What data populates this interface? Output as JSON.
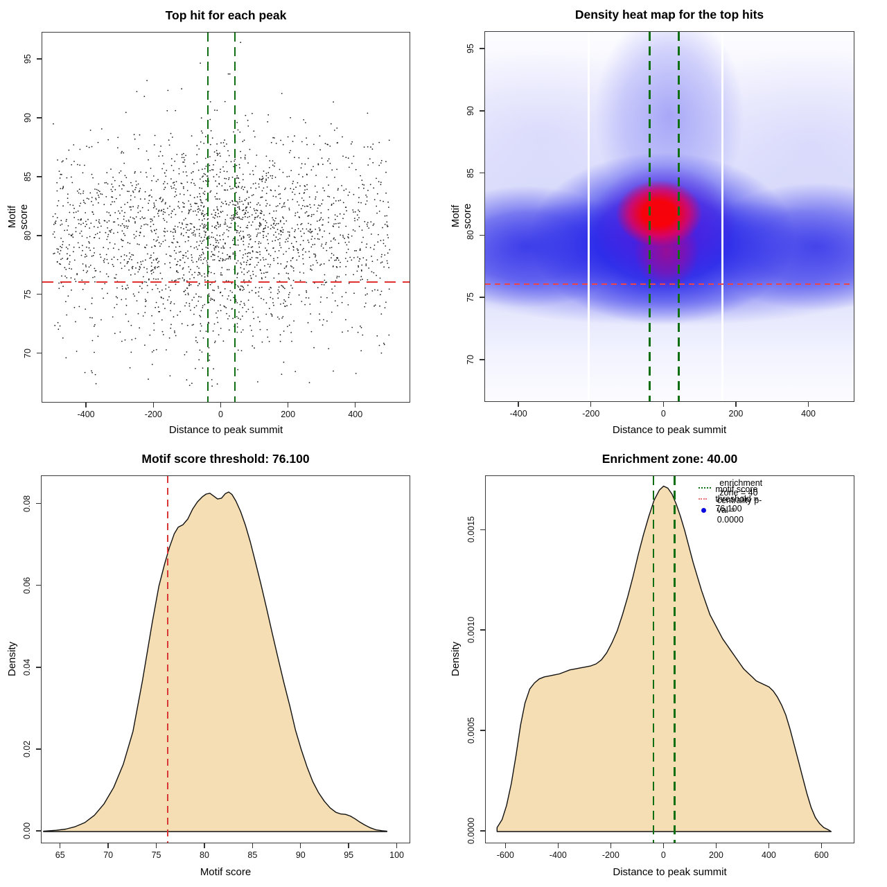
{
  "colors": {
    "threshold_red": "#e03131",
    "zone_green": "#0e6f12",
    "density_fill": "#f5deb3",
    "density_stroke": "#101010",
    "point_color": "#1b1b1b",
    "legend_blue": "#0b0be0",
    "heat_low": "#ffffff",
    "heat_mid": "#1e1ee8",
    "heat_hot": "#ff0000"
  },
  "chart_data": {
    "scatter": {
      "type": "scatter",
      "title": "Top hit for each peak",
      "xlabel": "Distance to peak summit",
      "ylabel": "Motif score",
      "xlim": [
        -532,
        563
      ],
      "ylim": [
        65.8,
        97.3
      ],
      "xticks": [
        -400,
        -200,
        0,
        200,
        400
      ],
      "xtick_labels": [
        "-400",
        "-200",
        "0",
        "200",
        "400"
      ],
      "yticks": [
        70,
        75,
        80,
        85,
        90,
        95
      ],
      "ytick_labels": [
        "70",
        "75",
        "80",
        "85",
        "90",
        "95"
      ],
      "motif_score_threshold": 76.1,
      "enrichment_zone": [
        -40,
        40
      ],
      "points_model": {
        "n": 2400,
        "x_range": [
          -500,
          500
        ],
        "x_uniform_frac": 0.66,
        "x_center_sd": 150,
        "y_mean": 79.9,
        "y_sd_up": 4.0,
        "y_sd_down": 4.6,
        "y_min": 66.9,
        "y_max": 96.6,
        "center_high_score_boost": 2.4,
        "center_boost_width": 160
      }
    },
    "heatmap": {
      "type": "heatmap",
      "title": "Density heat map for the top hits",
      "xlabel": "Distance to peak summit",
      "ylabel": "Motif score",
      "xlim": [
        -494,
        527
      ],
      "ylim": [
        66.6,
        96.4
      ],
      "xticks": [
        -400,
        -200,
        0,
        200,
        400
      ],
      "xtick_labels": [
        "-400",
        "-200",
        "0",
        "200",
        "400"
      ],
      "yticks": [
        70,
        75,
        80,
        85,
        90,
        95
      ],
      "ytick_labels": [
        "70",
        "75",
        "80",
        "85",
        "90",
        "95"
      ],
      "motif_score_threshold": 76.1,
      "enrichment_zone": [
        -40,
        40
      ],
      "hotspot": {
        "x": -15,
        "y": 82
      },
      "white_stripes_x": [
        -208,
        161
      ]
    },
    "score_density": {
      "type": "area",
      "title": "Motif score threshold: 76.100",
      "xlabel": "Motif score",
      "ylabel": "Density",
      "xlim": [
        63.0,
        101.4
      ],
      "ylim": [
        -0.00305,
        0.0869
      ],
      "xticks": [
        65,
        70,
        75,
        80,
        85,
        90,
        95,
        100
      ],
      "xtick_labels": [
        "65",
        "70",
        "75",
        "80",
        "85",
        "90",
        "95",
        "100"
      ],
      "yticks": [
        0,
        0.02,
        0.04,
        0.06,
        0.08
      ],
      "ytick_labels": [
        "0.00",
        "0.02",
        "0.04",
        "0.06",
        "0.08"
      ],
      "threshold": 76.1,
      "curve": [
        [
          63.2,
          0.0001
        ],
        [
          64.5,
          0.0003
        ],
        [
          65.5,
          0.0006
        ],
        [
          66.5,
          0.0012
        ],
        [
          67.5,
          0.0022
        ],
        [
          68.5,
          0.004
        ],
        [
          69.5,
          0.0068
        ],
        [
          70.5,
          0.0108
        ],
        [
          71.5,
          0.0165
        ],
        [
          72.5,
          0.0245
        ],
        [
          73.5,
          0.037
        ],
        [
          74.5,
          0.051
        ],
        [
          75.2,
          0.06
        ],
        [
          75.8,
          0.0655
        ],
        [
          76.3,
          0.0695
        ],
        [
          76.8,
          0.0728
        ],
        [
          77.2,
          0.0744
        ],
        [
          77.7,
          0.075
        ],
        [
          78.2,
          0.0764
        ],
        [
          78.7,
          0.0788
        ],
        [
          79.2,
          0.0806
        ],
        [
          79.7,
          0.0818
        ],
        [
          80.1,
          0.0825
        ],
        [
          80.5,
          0.0827
        ],
        [
          80.9,
          0.082
        ],
        [
          81.3,
          0.0813
        ],
        [
          81.7,
          0.0815
        ],
        [
          82.1,
          0.0826
        ],
        [
          82.45,
          0.083
        ],
        [
          82.8,
          0.0824
        ],
        [
          83.2,
          0.0808
        ],
        [
          83.7,
          0.0782
        ],
        [
          84.2,
          0.0748
        ],
        [
          84.7,
          0.0708
        ],
        [
          85.2,
          0.0662
        ],
        [
          85.8,
          0.0605
        ],
        [
          86.4,
          0.0545
        ],
        [
          87,
          0.0483
        ],
        [
          87.6,
          0.0422
        ],
        [
          88.2,
          0.0363
        ],
        [
          88.8,
          0.0308
        ],
        [
          89.4,
          0.0248
        ],
        [
          90,
          0.02
        ],
        [
          90.6,
          0.0158
        ],
        [
          91.2,
          0.0122
        ],
        [
          91.8,
          0.0095
        ],
        [
          92.4,
          0.0074
        ],
        [
          93,
          0.0058
        ],
        [
          93.6,
          0.0047
        ],
        [
          94.1,
          0.0043
        ],
        [
          94.6,
          0.0042
        ],
        [
          95.1,
          0.0038
        ],
        [
          95.6,
          0.0031
        ],
        [
          96.1,
          0.0023
        ],
        [
          96.6,
          0.0016
        ],
        [
          97.2,
          0.0009
        ],
        [
          97.8,
          0.0004
        ],
        [
          98.4,
          0.0002
        ],
        [
          98.9,
          0.0001
        ]
      ]
    },
    "distance_density": {
      "type": "area",
      "title": "Enrichment zone: 40.00",
      "xlabel": "Distance to peak summit",
      "ylabel": "Density",
      "xlim": [
        -677,
        725
      ],
      "ylim": [
        -6.2e-05,
        0.00177
      ],
      "xticks": [
        -600,
        -400,
        -200,
        0,
        200,
        400,
        600
      ],
      "xtick_labels": [
        "-600",
        "-400",
        "-200",
        "0",
        "200",
        "400",
        "600"
      ],
      "yticks": [
        0,
        0.0005,
        0.001,
        0.0015
      ],
      "ytick_labels": [
        "0.0000",
        "0.0005",
        "0.0010",
        "0.0015"
      ],
      "enrichment_zone": [
        -40,
        40
      ],
      "legend": [
        {
          "swatch": "green-dotted",
          "label": "enrichment zone = 40"
        },
        {
          "swatch": "red-dotted",
          "label": "motif score threshold = 76.100"
        },
        {
          "swatch": "blue-dot",
          "label": "centrality p-val = 0.0000"
        }
      ],
      "curve": [
        [
          -634,
          2e-05
        ],
        [
          -615,
          6e-05
        ],
        [
          -598,
          0.00013
        ],
        [
          -580,
          0.00024
        ],
        [
          -562,
          0.00038
        ],
        [
          -545,
          0.00053
        ],
        [
          -528,
          0.00064
        ],
        [
          -510,
          0.00071
        ],
        [
          -492,
          0.00074
        ],
        [
          -474,
          0.00076
        ],
        [
          -455,
          0.00077
        ],
        [
          -436,
          0.000775
        ],
        [
          -417,
          0.00078
        ],
        [
          -398,
          0.000785
        ],
        [
          -378,
          0.000795
        ],
        [
          -358,
          0.000805
        ],
        [
          -338,
          0.00081
        ],
        [
          -318,
          0.000815
        ],
        [
          -298,
          0.00082
        ],
        [
          -278,
          0.000825
        ],
        [
          -258,
          0.000835
        ],
        [
          -238,
          0.000855
        ],
        [
          -218,
          0.00089
        ],
        [
          -198,
          0.00094
        ],
        [
          -178,
          0.001
        ],
        [
          -158,
          0.00108
        ],
        [
          -138,
          0.00117
        ],
        [
          -118,
          0.00127
        ],
        [
          -98,
          0.00138
        ],
        [
          -78,
          0.00148
        ],
        [
          -58,
          0.00157
        ],
        [
          -38,
          0.00165
        ],
        [
          -18,
          0.0017
        ],
        [
          -2,
          0.00172
        ],
        [
          14,
          0.00171
        ],
        [
          30,
          0.00168
        ],
        [
          46,
          0.00163
        ],
        [
          62,
          0.00157
        ],
        [
          78,
          0.0015
        ],
        [
          94,
          0.00142
        ],
        [
          110,
          0.00134
        ],
        [
          126,
          0.00127
        ],
        [
          142,
          0.0012
        ],
        [
          158,
          0.00114
        ],
        [
          174,
          0.00108
        ],
        [
          190,
          0.00104
        ],
        [
          206,
          0.001
        ],
        [
          222,
          0.00096
        ],
        [
          238,
          0.00093
        ],
        [
          254,
          0.0009
        ],
        [
          270,
          0.00087
        ],
        [
          286,
          0.00084
        ],
        [
          302,
          0.00081
        ],
        [
          318,
          0.00079
        ],
        [
          334,
          0.00077
        ],
        [
          350,
          0.00075
        ],
        [
          366,
          0.00074
        ],
        [
          382,
          0.00073
        ],
        [
          398,
          0.00072
        ],
        [
          414,
          0.0007
        ],
        [
          430,
          0.00067
        ],
        [
          446,
          0.00063
        ],
        [
          462,
          0.00058
        ],
        [
          478,
          0.00051
        ],
        [
          494,
          0.00043
        ],
        [
          510,
          0.00035
        ],
        [
          526,
          0.00027
        ],
        [
          542,
          0.00019
        ],
        [
          558,
          0.00012
        ],
        [
          574,
          7e-05
        ],
        [
          590,
          4e-05
        ],
        [
          606,
          2e-05
        ],
        [
          622,
          1e-05
        ],
        [
          634,
          0
        ]
      ]
    }
  }
}
